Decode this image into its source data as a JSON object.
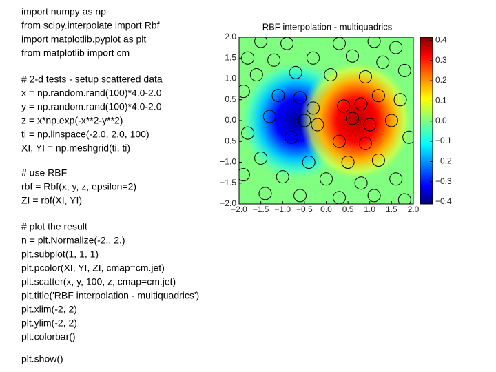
{
  "code": {
    "blocks": [
      {
        "lines": [
          "import numpy as np",
          "from scipy.interpolate import Rbf",
          "import matplotlib.pyplot as plt",
          "from matplotlib import cm"
        ]
      },
      {
        "lines": [
          "# 2-d tests - setup scattered data",
          "x = np.random.rand(100)*4.0-2.0",
          "y = np.random.rand(100)*4.0-2.0",
          "z = x*np.exp(-x**2-y**2)",
          "ti = np.linspace(-2.0, 2.0, 100)",
          "XI, YI = np.meshgrid(ti, ti)"
        ]
      },
      {
        "lines": [
          "# use RBF",
          "rbf = Rbf(x, y, z, epsilon=2)",
          "ZI = rbf(XI, YI)"
        ]
      },
      {
        "lines": [
          "# plot the result",
          "n = plt.Normalize(-2., 2.)",
          "plt.subplot(1, 1, 1)",
          "plt.pcolor(XI, YI, ZI, cmap=cm.jet)",
          "plt.scatter(x, y, 100, z, cmap=cm.jet)",
          "plt.title('RBF interpolation - multiquadrics')",
          "plt.xlim(-2, 2)",
          "plt.ylim(-2, 2)",
          "plt.colorbar()"
        ]
      },
      {
        "lines": [
          "plt.show()"
        ]
      }
    ]
  },
  "chart_data": {
    "type": "scatter",
    "title": "RBF interpolation - multiquadrics",
    "x": [
      -1.5,
      -0.9,
      0.3,
      1.1,
      1.6,
      -1.8,
      -1.2,
      -0.3,
      0.6,
      1.3,
      -1.6,
      -0.7,
      0.1,
      0.9,
      1.8,
      -1.9,
      -1.1,
      -0.6,
      -0.3,
      0.4,
      0.8,
      1.2,
      1.7,
      -1.3,
      -0.5,
      -0.2,
      0.6,
      1.0,
      1.5,
      -1.8,
      -0.8,
      0.3,
      0.9,
      1.9,
      -1.5,
      -0.4,
      0.5,
      1.2,
      -1.9,
      -1.0,
      0.0,
      0.8,
      1.6,
      -1.4,
      -0.6,
      0.3,
      1.1,
      1.8
    ],
    "y": [
      1.9,
      1.85,
      1.85,
      1.9,
      1.75,
      1.5,
      1.45,
      1.5,
      1.55,
      1.4,
      1.1,
      1.15,
      1.1,
      1.05,
      1.2,
      0.7,
      0.6,
      0.55,
      0.3,
      0.35,
      0.4,
      0.6,
      0.5,
      0.1,
      0.0,
      -0.1,
      0.05,
      -0.1,
      0.0,
      -0.3,
      -0.4,
      -0.5,
      -0.55,
      -0.4,
      -0.9,
      -1.0,
      -1.0,
      -0.95,
      -1.3,
      -1.35,
      -1.4,
      -1.5,
      -1.4,
      -1.75,
      -1.8,
      -1.85,
      -1.8,
      -1.9
    ],
    "xlim": [
      -2,
      2
    ],
    "ylim": [
      -2,
      2
    ],
    "xticks": [
      {
        "value": -2,
        "label": "−2.0"
      },
      {
        "value": -1.5,
        "label": "−1.5"
      },
      {
        "value": -1,
        "label": "−1.0"
      },
      {
        "value": -0.5,
        "label": "−0.5"
      },
      {
        "value": 0,
        "label": "0.0"
      },
      {
        "value": 0.5,
        "label": "0.5"
      },
      {
        "value": 1,
        "label": "1.0"
      },
      {
        "value": 1.5,
        "label": "1.5"
      },
      {
        "value": 2,
        "label": "2.0"
      }
    ],
    "yticks": [
      {
        "value": -2,
        "label": "−2.0"
      },
      {
        "value": -1.5,
        "label": "−1.5"
      },
      {
        "value": -1,
        "label": "−1.0"
      },
      {
        "value": -0.5,
        "label": "−0.5"
      },
      {
        "value": 0,
        "label": "0.0"
      },
      {
        "value": 0.5,
        "label": "0.5"
      },
      {
        "value": 1,
        "label": "1.0"
      },
      {
        "value": 1.5,
        "label": "1.5"
      },
      {
        "value": 2,
        "label": "2.0"
      }
    ],
    "colorbar": {
      "lim": [
        -0.41,
        0.415
      ],
      "ticks": [
        {
          "value": -0.4,
          "label": "−0.4"
        },
        {
          "value": -0.3,
          "label": "−0.3"
        },
        {
          "value": -0.2,
          "label": "−0.2"
        },
        {
          "value": -0.1,
          "label": "−0.1"
        },
        {
          "value": 0,
          "label": "0.0"
        },
        {
          "value": 0.1,
          "label": "0.1"
        },
        {
          "value": 0.2,
          "label": "0.2"
        },
        {
          "value": 0.3,
          "label": "0.3"
        },
        {
          "value": 0.4,
          "label": "0.4"
        }
      ]
    }
  }
}
